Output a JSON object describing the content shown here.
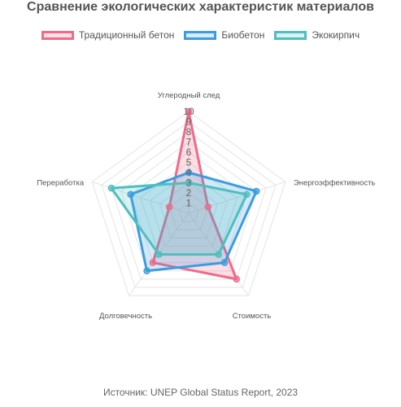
{
  "chart_data": {
    "type": "radar",
    "title": "Сравнение экологических характеристик материалов",
    "axes": [
      "Углеродный след",
      "Энергоэффективность",
      "Стоимость",
      "Долговечность",
      "Переработка"
    ],
    "scale": {
      "min": 0,
      "max": 10,
      "ticks": [
        "1",
        "2",
        "3",
        "4",
        "5",
        "6",
        "7",
        "8",
        "9",
        "10"
      ]
    },
    "series": [
      {
        "name": "Традиционный бетон",
        "values": [
          10,
          2,
          8,
          6,
          2
        ],
        "color": "#f06a8a"
      },
      {
        "name": "Биобетон",
        "values": [
          4,
          7,
          6,
          7,
          6
        ],
        "color": "#3a9de0"
      },
      {
        "name": "Экокирпич",
        "values": [
          3,
          6,
          5,
          5,
          8
        ],
        "color": "#4ebfbf"
      }
    ],
    "legend_position": "top",
    "grid": true
  },
  "source": "Источник: UNEP Global Status Report, 2023"
}
